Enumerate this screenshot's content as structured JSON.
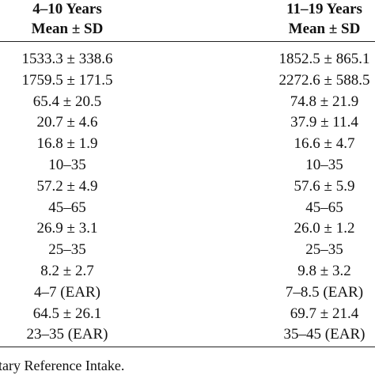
{
  "table": {
    "header": [
      [
        "4–10 Years",
        "11–19 Years"
      ],
      [
        "Mean ± SD",
        "Mean ± SD"
      ]
    ],
    "rows": [
      [
        "1533.3 ± 338.6",
        "1852.5 ± 865.1"
      ],
      [
        "1759.5 ± 171.5",
        "2272.6 ± 588.5"
      ],
      [
        "65.4 ± 20.5",
        "74.8 ± 21.9"
      ],
      [
        "20.7 ± 4.6",
        "37.9 ± 11.4"
      ],
      [
        "16.8 ± 1.9",
        "16.6 ± 4.7"
      ],
      [
        "10–35",
        "10–35"
      ],
      [
        "57.2 ± 4.9",
        "57.6 ± 5.9"
      ],
      [
        "45–65",
        "45–65"
      ],
      [
        "26.9 ± 3.1",
        "26.0 ± 1.2"
      ],
      [
        "25–35",
        "25–35"
      ],
      [
        "8.2 ± 2.7",
        "9.8 ± 3.2"
      ],
      [
        "4–7 (EAR)",
        "7–8.5 (EAR)"
      ],
      [
        "64.5 ± 26.1",
        "69.7 ± 21.4"
      ],
      [
        "23–35 (EAR)",
        "35–45 (EAR)"
      ]
    ],
    "footnote": "tary Reference Intake."
  }
}
